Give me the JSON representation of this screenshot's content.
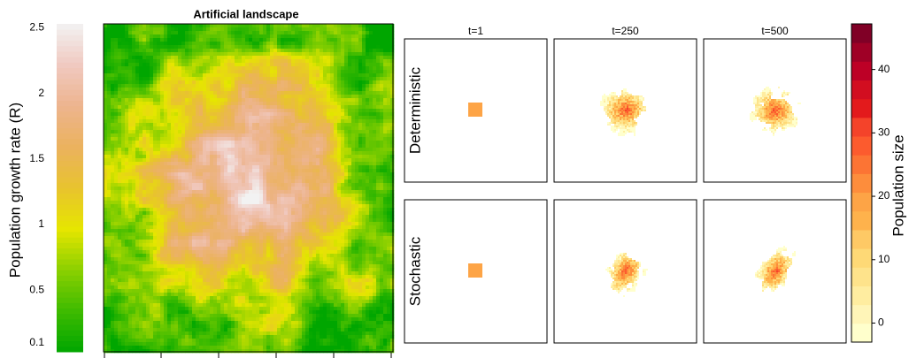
{
  "chart_data": [
    {
      "type": "colorbar",
      "label": "Population growth rate (R)",
      "ylim": [
        0.03,
        2.53
      ],
      "yticks": [
        0.1,
        0.5,
        1,
        1.5,
        2,
        2.5
      ],
      "colors": [
        "#00A600",
        "#3EBB00",
        "#8BD000",
        "#E6E600",
        "#E8C32E",
        "#EBB25E",
        "#EDB48E",
        "#F0C9C0",
        "#F2F2F2"
      ]
    },
    {
      "type": "raster",
      "title": "Artificial landscape"
    },
    {
      "type": "panel-grid",
      "columns": [
        "t=1",
        "t=250",
        "t=500"
      ],
      "rows": [
        "Deterministic",
        "Stochastic"
      ]
    },
    {
      "type": "colorbar",
      "label": "Population size",
      "ylim": [
        -3,
        47.2
      ],
      "yticks": [
        0,
        10,
        20,
        30,
        40
      ],
      "colors": [
        "#FFFFCC",
        "#FFF5B8",
        "#FFEDA0",
        "#FEE38B",
        "#FED976",
        "#FEC965",
        "#FEB24C",
        "#FDA446",
        "#FD8D3C",
        "#FC7434",
        "#FC5B2E",
        "#F4432A",
        "#E31A1C",
        "#D20E20",
        "#BD0026",
        "#9F0026",
        "#800026"
      ]
    }
  ]
}
